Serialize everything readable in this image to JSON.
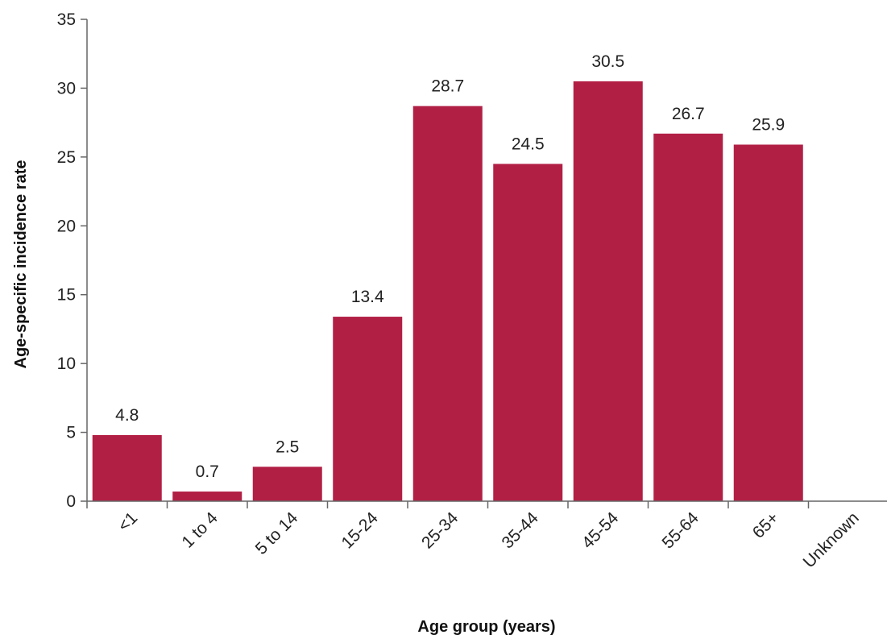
{
  "chart_data": {
    "type": "bar",
    "title": "",
    "xlabel": "Age group (years)",
    "ylabel": "Age-specific incidence rate",
    "categories": [
      "<1",
      "1 to 4",
      "5 to 14",
      "15-24",
      "25-34",
      "35-44",
      "45-54",
      "55-64",
      "65+",
      "Unknown"
    ],
    "values": [
      4.8,
      0.7,
      2.5,
      13.4,
      28.7,
      24.5,
      30.5,
      26.7,
      25.9,
      null
    ],
    "value_labels": [
      "4.8",
      "0.7",
      "2.5",
      "13.4",
      "28.7",
      "24.5",
      "30.5",
      "26.7",
      "25.9",
      ""
    ],
    "ylim": [
      0,
      35
    ],
    "yticks": [
      0,
      5,
      10,
      15,
      20,
      25,
      30,
      35
    ],
    "grid": false,
    "legend": "none",
    "bar_color": "#b21f45"
  }
}
